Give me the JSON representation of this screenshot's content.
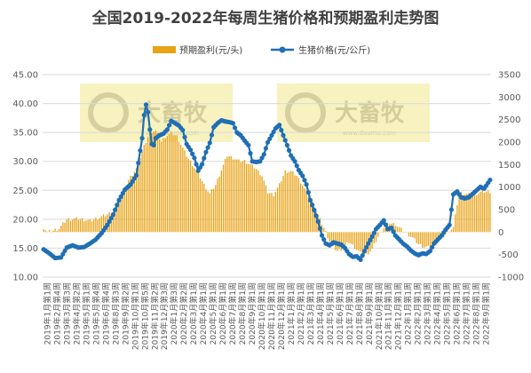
{
  "chart_data": {
    "type": "bar+line",
    "title": "全国2019-2022年每周生猪价格和预期盈利走势图",
    "legend": {
      "position": "top",
      "entries": [
        "预期盈利(元/头)",
        "生猪价格(元/公斤)"
      ]
    },
    "watermark": {
      "brand": "大畜牧",
      "url": "www.dxumu.com"
    },
    "y_left": {
      "ylim": [
        10,
        45
      ],
      "ticks": [
        "10.00",
        "15.00",
        "20.00",
        "25.00",
        "30.00",
        "35.00",
        "40.00",
        "45.00"
      ]
    },
    "y_right": {
      "ylim": [
        -1000,
        3500
      ],
      "ticks": [
        "-1000",
        "-500",
        "0",
        "500",
        "1000",
        "1500",
        "2000",
        "2500",
        "3000",
        "3500"
      ]
    },
    "x_tick_labels": [
      "2019年1月第1周",
      "2019年2月第4周",
      "2019年3月第3周",
      "2019年4月第2周",
      "2019年5月第1周",
      "2019年5月第4周",
      "2019年6月第4周",
      "2019年8月第3周",
      "2019年9月第2周",
      "2019年10月第1周",
      "2019年10月第5周",
      "2019年11月第2周",
      "2019年12月第3周",
      "2020年1月第3周",
      "2020年2月第2周",
      "2020年3月第1周",
      "2020年4月第1周",
      "2020年5月第1周",
      "2020年6月第1周",
      "2020年7月第1周",
      "2020年8月第1周",
      "2020年9月第1周",
      "2020年10月第1周",
      "2020年11月第1周",
      "2020年12月第1周",
      "2021年1月第1周",
      "2021年2月第1周",
      "2021年3月第1周",
      "2021年4月第1周",
      "2021年5月第1周",
      "2021年6月第1周",
      "2021年7月第1周",
      "2021年8月第1周",
      "2021年9月第1周",
      "2021年10月第1周",
      "2021年11月第1周",
      "2021年12月第1周",
      "2022年1月第1周",
      "2022年2月第1周",
      "2022年3月第1周",
      "2022年4月第1周",
      "2022年5月第1周",
      "2022年6月第1周",
      "2022年7月第1周",
      "2022年8月第1周",
      "2022年9月第1周"
    ],
    "series": [
      {
        "name": "预期盈利(元/头)",
        "type": "bar",
        "axis": "right",
        "color": "#E8A317",
        "keypoints": [
          [
            0,
            100
          ],
          [
            2,
            0
          ],
          [
            4,
            20
          ],
          [
            8,
            80
          ],
          [
            12,
            280
          ],
          [
            18,
            300
          ],
          [
            24,
            250
          ],
          [
            30,
            340
          ],
          [
            36,
            450
          ],
          [
            40,
            780
          ],
          [
            44,
            1150
          ],
          [
            48,
            1400
          ],
          [
            52,
            1900
          ],
          [
            55,
            2220
          ],
          [
            58,
            2250
          ],
          [
            61,
            2000
          ],
          [
            63,
            2120
          ],
          [
            66,
            2200
          ],
          [
            69,
            2130
          ],
          [
            71,
            1950
          ],
          [
            74,
            1700
          ],
          [
            77,
            1500
          ],
          [
            80,
            1300
          ],
          [
            83,
            1050
          ],
          [
            86,
            850
          ],
          [
            89,
            1050
          ],
          [
            92,
            1380
          ],
          [
            95,
            1700
          ],
          [
            98,
            1650
          ],
          [
            101,
            1580
          ],
          [
            104,
            1580
          ],
          [
            107,
            1500
          ],
          [
            110,
            1400
          ],
          [
            113,
            1250
          ],
          [
            116,
            880
          ],
          [
            119,
            830
          ],
          [
            122,
            1050
          ],
          [
            125,
            1350
          ],
          [
            128,
            1350
          ],
          [
            131,
            1250
          ],
          [
            134,
            1050
          ],
          [
            137,
            800
          ],
          [
            140,
            580
          ],
          [
            143,
            280
          ],
          [
            146,
            0
          ],
          [
            149,
            -300
          ],
          [
            152,
            -420
          ],
          [
            155,
            -350
          ],
          [
            158,
            -220
          ],
          [
            161,
            -340
          ],
          [
            164,
            -470
          ],
          [
            167,
            -500
          ],
          [
            170,
            -380
          ],
          [
            173,
            -100
          ],
          [
            176,
            100
          ],
          [
            179,
            200
          ],
          [
            182,
            170
          ],
          [
            185,
            60
          ],
          [
            188,
            -30
          ],
          [
            191,
            -130
          ],
          [
            194,
            -270
          ],
          [
            197,
            -330
          ],
          [
            200,
            -350
          ],
          [
            203,
            -250
          ],
          [
            206,
            -130
          ],
          [
            209,
            0
          ],
          [
            212,
            100
          ],
          [
            215,
            880
          ],
          [
            218,
            850
          ],
          [
            221,
            820
          ],
          [
            224,
            850
          ],
          [
            227,
            900
          ],
          [
            231,
            900
          ]
        ]
      },
      {
        "name": "生猪价格(元/公斤)",
        "type": "line",
        "axis": "left",
        "color": "#1F6FB5",
        "keypoints": [
          [
            0,
            14.8
          ],
          [
            3,
            14.1
          ],
          [
            6,
            13.3
          ],
          [
            9,
            13.4
          ],
          [
            12,
            15.1
          ],
          [
            15,
            15.5
          ],
          [
            18,
            15.1
          ],
          [
            21,
            15.2
          ],
          [
            24,
            15.8
          ],
          [
            27,
            16.5
          ],
          [
            30,
            17.6
          ],
          [
            33,
            19.0
          ],
          [
            36,
            20.8
          ],
          [
            39,
            23.3
          ],
          [
            42,
            25.1
          ],
          [
            45,
            26.0
          ],
          [
            48,
            27.6
          ],
          [
            51,
            34.0
          ],
          [
            52,
            38.0
          ],
          [
            53,
            39.8
          ],
          [
            54,
            38.5
          ],
          [
            55,
            35.5
          ],
          [
            56,
            33.0
          ],
          [
            57,
            32.8
          ],
          [
            58,
            34.0
          ],
          [
            60,
            34.5
          ],
          [
            62,
            34.8
          ],
          [
            64,
            35.5
          ],
          [
            66,
            37.0
          ],
          [
            68,
            36.6
          ],
          [
            70,
            36.2
          ],
          [
            72,
            35.4
          ],
          [
            74,
            33.0
          ],
          [
            76,
            32.0
          ],
          [
            78,
            30.6
          ],
          [
            80,
            28.4
          ],
          [
            82,
            29.5
          ],
          [
            84,
            31.6
          ],
          [
            86,
            33.2
          ],
          [
            88,
            35.9
          ],
          [
            90,
            36.6
          ],
          [
            92,
            37.1
          ],
          [
            94,
            36.9
          ],
          [
            96,
            36.8
          ],
          [
            98,
            36.6
          ],
          [
            100,
            35.0
          ],
          [
            102,
            34.5
          ],
          [
            104,
            33.6
          ],
          [
            106,
            32.8
          ],
          [
            108,
            30.0
          ],
          [
            110,
            29.9
          ],
          [
            112,
            30.0
          ],
          [
            114,
            31.2
          ],
          [
            116,
            33.3
          ],
          [
            118,
            34.5
          ],
          [
            120,
            35.7
          ],
          [
            122,
            36.3
          ],
          [
            124,
            34.5
          ],
          [
            126,
            32.8
          ],
          [
            128,
            31.0
          ],
          [
            130,
            30.0
          ],
          [
            132,
            28.5
          ],
          [
            134,
            27.5
          ],
          [
            136,
            26.0
          ],
          [
            138,
            23.3
          ],
          [
            140,
            21.6
          ],
          [
            142,
            19.6
          ],
          [
            144,
            17.2
          ],
          [
            146,
            15.8
          ],
          [
            148,
            15.5
          ],
          [
            150,
            16.0
          ],
          [
            152,
            15.8
          ],
          [
            154,
            15.6
          ],
          [
            156,
            15.0
          ],
          [
            158,
            14.0
          ],
          [
            160,
            13.5
          ],
          [
            162,
            13.6
          ],
          [
            164,
            13.0
          ],
          [
            166,
            14.5
          ],
          [
            168,
            15.8
          ],
          [
            170,
            17.0
          ],
          [
            172,
            18.3
          ],
          [
            174,
            19.0
          ],
          [
            176,
            19.8
          ],
          [
            178,
            18.3
          ],
          [
            180,
            18.5
          ],
          [
            182,
            17.2
          ],
          [
            184,
            16.5
          ],
          [
            186,
            15.8
          ],
          [
            188,
            15.3
          ],
          [
            190,
            14.6
          ],
          [
            192,
            14.1
          ],
          [
            194,
            13.8
          ],
          [
            196,
            14.1
          ],
          [
            198,
            14.0
          ],
          [
            200,
            14.5
          ],
          [
            202,
            15.8
          ],
          [
            204,
            16.5
          ],
          [
            206,
            17.2
          ],
          [
            208,
            18.2
          ],
          [
            210,
            19.0
          ],
          [
            212,
            24.3
          ],
          [
            214,
            24.8
          ],
          [
            216,
            23.8
          ],
          [
            218,
            23.6
          ],
          [
            220,
            23.8
          ],
          [
            222,
            24.4
          ],
          [
            224,
            25.0
          ],
          [
            226,
            25.6
          ],
          [
            228,
            25.3
          ],
          [
            231,
            26.8
          ]
        ]
      }
    ]
  }
}
